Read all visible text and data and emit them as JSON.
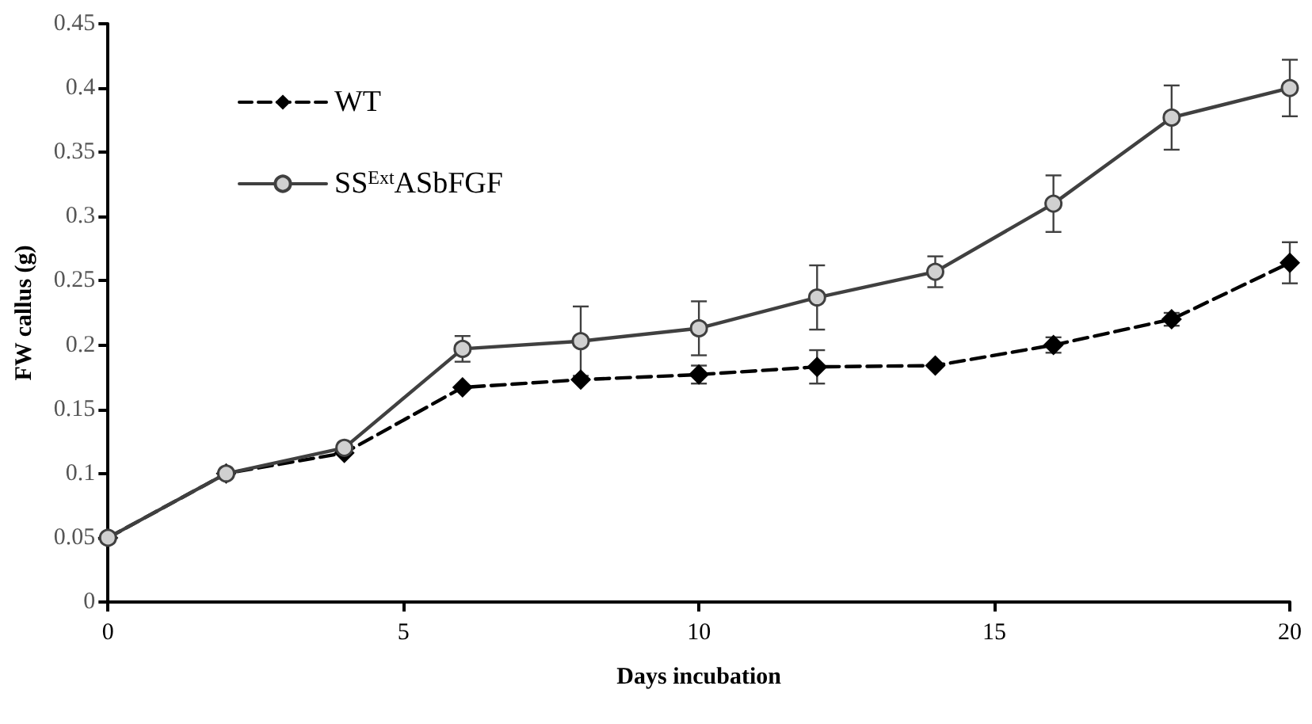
{
  "chart_data": {
    "type": "line",
    "xlabel": "Days incubation",
    "ylabel": "FW callus (g)",
    "x": [
      0,
      2,
      4,
      6,
      8,
      10,
      12,
      14,
      16,
      18,
      20
    ],
    "series": [
      {
        "name": "WT",
        "color": "#000000",
        "marker": "diamond",
        "line_style": "dashed",
        "values": [
          0.05,
          0.1,
          0.116,
          0.167,
          0.173,
          0.177,
          0.183,
          0.184,
          0.2,
          0.22,
          0.264
        ],
        "errors": [
          null,
          null,
          null,
          null,
          null,
          0.007,
          0.013,
          null,
          0.006,
          0.005,
          0.016
        ]
      },
      {
        "name": "SS$^{Ext}$ASbFGF",
        "color": "#404040",
        "marker": "circle",
        "line_style": "solid",
        "values": [
          0.05,
          0.1,
          0.12,
          0.197,
          0.203,
          0.213,
          0.237,
          0.257,
          0.31,
          0.377,
          0.4
        ],
        "errors": [
          null,
          null,
          null,
          0.01,
          0.027,
          0.021,
          0.025,
          0.012,
          0.022,
          0.025,
          0.022
        ]
      }
    ],
    "xlim": [
      0,
      20
    ],
    "xticks": [
      0,
      5,
      10,
      15,
      20
    ],
    "ylim": [
      0,
      0.45
    ],
    "yticks": [
      0,
      0.05,
      0.1,
      0.15,
      0.2,
      0.25,
      0.3,
      0.35,
      0.4,
      0.45
    ],
    "grid": false,
    "legend": "top left"
  }
}
